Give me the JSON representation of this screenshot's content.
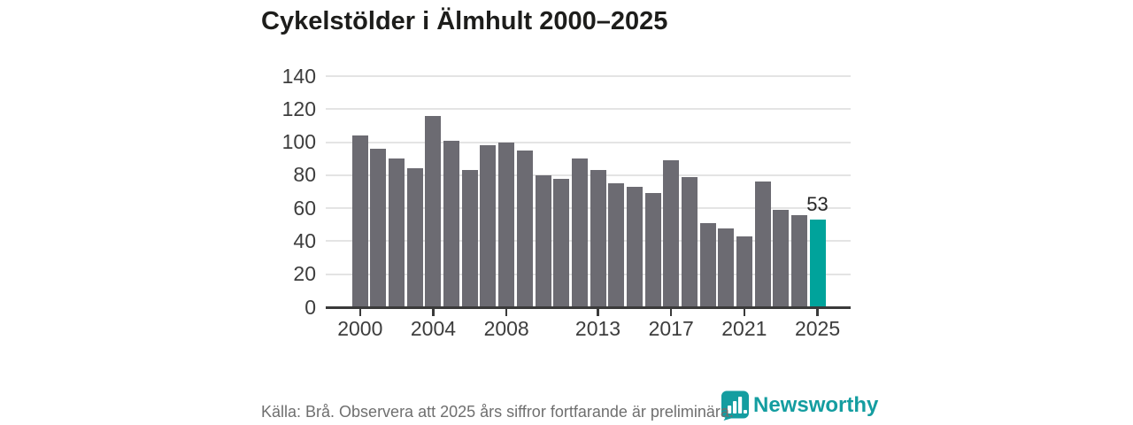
{
  "title": "Cykelstölder i Älmhult 2000–2025",
  "chart_data": {
    "type": "bar",
    "title": "Cykelstölder i Älmhult 2000–2025",
    "x": [
      2000,
      2001,
      2002,
      2003,
      2004,
      2005,
      2006,
      2007,
      2008,
      2009,
      2010,
      2011,
      2012,
      2013,
      2014,
      2015,
      2016,
      2017,
      2018,
      2019,
      2020,
      2021,
      2022,
      2023,
      2024,
      2025
    ],
    "values": [
      104,
      96,
      90,
      84,
      116,
      101,
      83,
      98,
      100,
      95,
      80,
      78,
      90,
      83,
      75,
      73,
      69,
      89,
      79,
      51,
      48,
      43,
      76,
      59,
      56,
      53
    ],
    "highlight_index": 25,
    "highlight_label": "53",
    "ylim": [
      0,
      140
    ],
    "y_ticks": [
      0,
      20,
      40,
      60,
      80,
      100,
      120,
      140
    ],
    "x_tick_labels": [
      "2000",
      "2004",
      "2008",
      "2013",
      "2017",
      "2021",
      "2025"
    ],
    "x_tick_indices": [
      0,
      4,
      8,
      13,
      17,
      21,
      25
    ],
    "grid": true,
    "legend": "none",
    "bar_color": "#6c6b72",
    "highlight_color": "#00a39b",
    "gridline_color": "#e4e4e4",
    "axis_color": "#3a3a3a"
  },
  "footer": {
    "source_note": "Källa: Brå. Observera att 2025 års siffror fortfarande är preliminära."
  },
  "branding": {
    "logo_text": "Newsworthy",
    "logo_color": "#149da0",
    "logo_icon": "newsworthy-barchart-bubble-icon"
  }
}
